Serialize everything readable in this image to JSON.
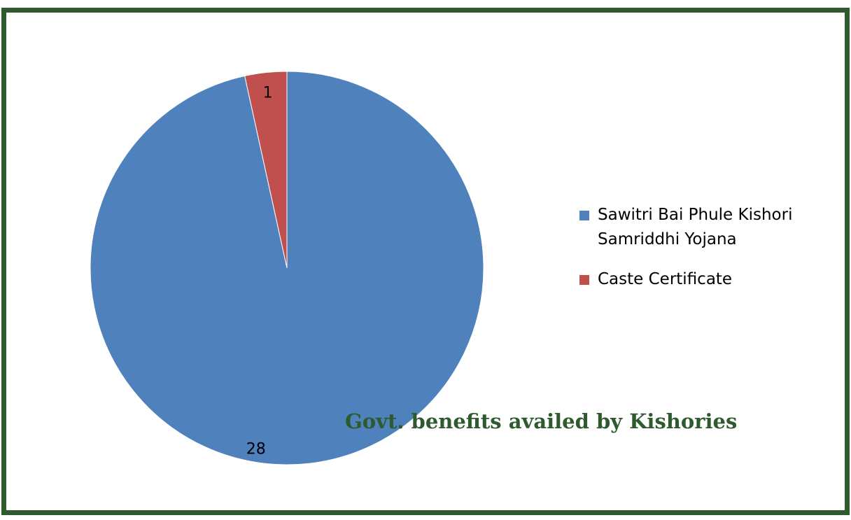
{
  "chart_data": {
    "type": "pie",
    "title": "Govt. benefits availed by Kishories",
    "slices": [
      {
        "label": "Sawitri Bai Phule Kishori Samriddhi Yojana",
        "value": 28,
        "color": "#4f81bd"
      },
      {
        "label": "Caste Certificate",
        "value": 1,
        "color": "#c0504d"
      }
    ],
    "legend_position": "right",
    "data_labels": [
      "28",
      "1"
    ]
  },
  "colors": {
    "frame_border": "#2e5a2e",
    "title": "#2e5a2e"
  }
}
